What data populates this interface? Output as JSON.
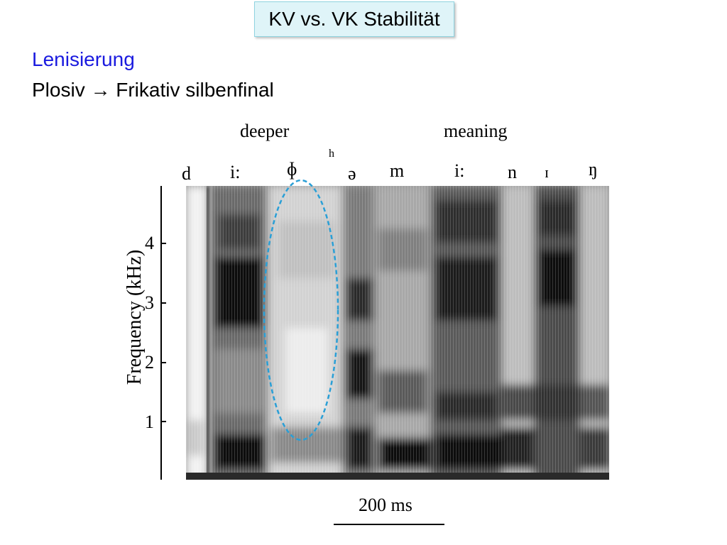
{
  "slide": {
    "title": "KV vs. VK Stabilität",
    "subtitle": "Lenisierung",
    "line2": "Plosiv → Frikativ silbenfinal"
  },
  "figure": {
    "words": [
      "deeper",
      "meaning"
    ],
    "phones": [
      "d",
      "i:",
      "ɸ",
      "h",
      "ə",
      "m",
      "i:",
      "n",
      "ɪ",
      "ŋ"
    ],
    "y_axis_label": "Frequency (kHz)",
    "y_ticks": [
      "4",
      "3",
      "2",
      "1"
    ],
    "scale_label": "200 ms",
    "highlight_color": "#2a9fd6"
  }
}
